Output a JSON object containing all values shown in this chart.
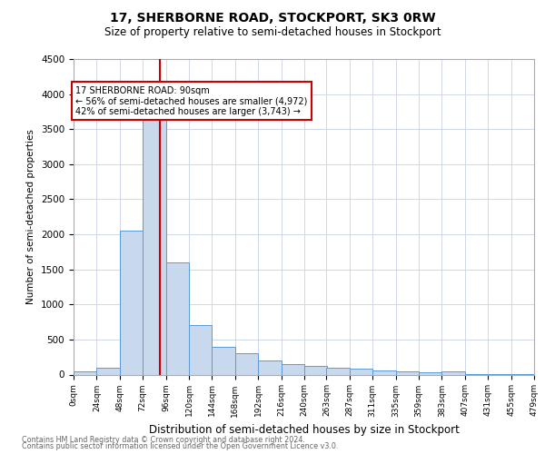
{
  "title": "17, SHERBORNE ROAD, STOCKPORT, SK3 0RW",
  "subtitle": "Size of property relative to semi-detached houses in Stockport",
  "xlabel": "Distribution of semi-detached houses by size in Stockport",
  "ylabel": "Number of semi-detached properties",
  "footnote1": "Contains HM Land Registry data © Crown copyright and database right 2024.",
  "footnote2": "Contains public sector information licensed under the Open Government Licence v3.0.",
  "annotation_title": "17 SHERBORNE ROAD: 90sqm",
  "annotation_line1": "← 56% of semi-detached houses are smaller (4,972)",
  "annotation_line2": "42% of semi-detached houses are larger (3,743) →",
  "property_size": 90,
  "bin_width": 24,
  "bin_starts": [
    0,
    24,
    48,
    72,
    96,
    120,
    144,
    168,
    192,
    216,
    240,
    263,
    287,
    311,
    335,
    359,
    383,
    407,
    431,
    455
  ],
  "bar_heights": [
    50,
    100,
    2050,
    4000,
    1600,
    700,
    400,
    300,
    200,
    150,
    120,
    100,
    80,
    60,
    50,
    30,
    50,
    10,
    10,
    10
  ],
  "bar_color": "#c9d9ed",
  "bar_edge_color": "#5b9bd5",
  "vline_color": "#cc0000",
  "annotation_box_color": "#cc0000",
  "background_color": "#ffffff",
  "grid_color": "#d0d8e8",
  "ylim": [
    0,
    4500
  ],
  "yticks": [
    0,
    500,
    1000,
    1500,
    2000,
    2500,
    3000,
    3500,
    4000,
    4500
  ],
  "xtick_positions": [
    0,
    24,
    48,
    72,
    96,
    120,
    144,
    168,
    192,
    216,
    240,
    263,
    287,
    311,
    335,
    359,
    383,
    407,
    431,
    455,
    479
  ],
  "xtick_labels": [
    "0sqm",
    "24sqm",
    "48sqm",
    "72sqm",
    "96sqm",
    "120sqm",
    "144sqm",
    "168sqm",
    "192sqm",
    "216sqm",
    "240sqm",
    "263sqm",
    "287sqm",
    "311sqm",
    "335sqm",
    "359sqm",
    "383sqm",
    "407sqm",
    "431sqm",
    "455sqm",
    "479sqm"
  ]
}
